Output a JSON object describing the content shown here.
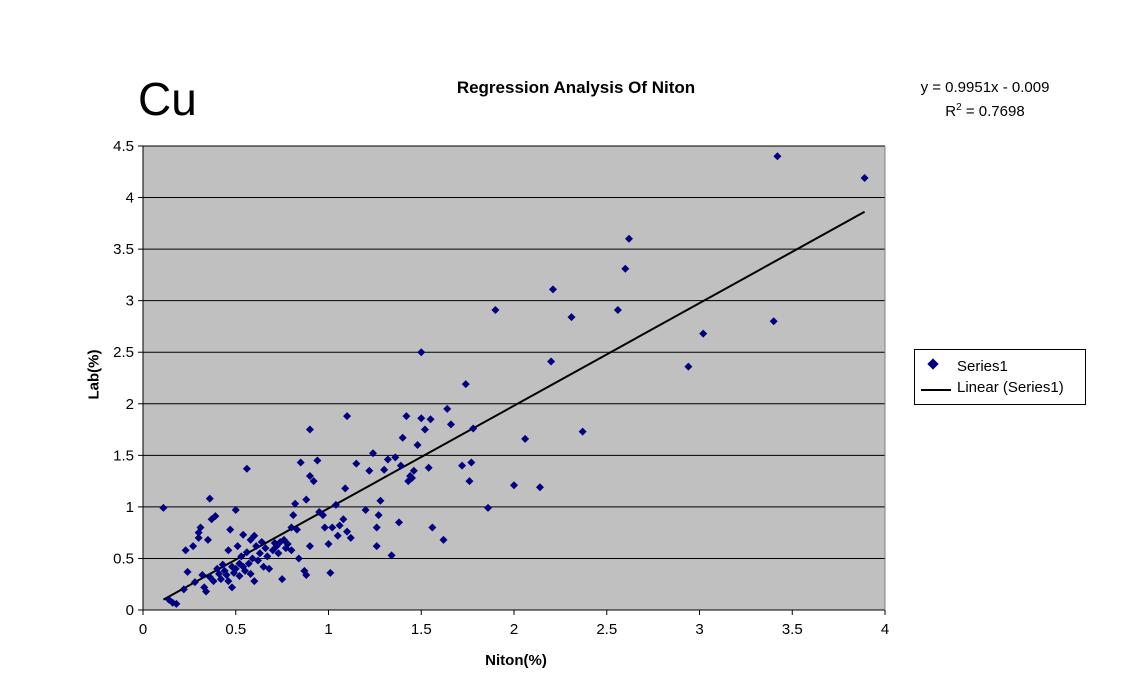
{
  "page": {
    "big_label": "Cu",
    "equation": "y = 0.9951x - 0.009",
    "r2_prefix": "R",
    "r2_sup": "2",
    "r2_value": " = 0.7698"
  },
  "colors": {
    "plot_bg": "#c0c0c0",
    "marker": "#000080",
    "trendline": "#000000",
    "grid": "#000000"
  },
  "chart_data": {
    "type": "scatter",
    "title": "Regression Analysis Of Niton",
    "xlabel": "Niton(%)",
    "ylabel": "Lab(%)",
    "xlim": [
      0,
      4
    ],
    "ylim": [
      0,
      4.5
    ],
    "x_ticks": [
      "0",
      "0.5",
      "1",
      "1.5",
      "2",
      "2.5",
      "3",
      "3.5",
      "4"
    ],
    "y_ticks": [
      "0",
      "0.5",
      "1",
      "1.5",
      "2",
      "2.5",
      "3",
      "3.5",
      "4",
      "4.5"
    ],
    "grid": "horizontal",
    "legend_position": "right",
    "series": [
      {
        "name": "Series1",
        "marker": "diamond",
        "points": [
          [
            0.11,
            0.99
          ],
          [
            0.14,
            0.1
          ],
          [
            0.16,
            0.07
          ],
          [
            0.18,
            0.06
          ],
          [
            0.22,
            0.2
          ],
          [
            0.23,
            0.58
          ],
          [
            0.24,
            0.37
          ],
          [
            0.27,
            0.62
          ],
          [
            0.28,
            0.27
          ],
          [
            0.3,
            0.7
          ],
          [
            0.3,
            0.75
          ],
          [
            0.31,
            0.8
          ],
          [
            0.32,
            0.34
          ],
          [
            0.33,
            0.22
          ],
          [
            0.34,
            0.18
          ],
          [
            0.35,
            0.68
          ],
          [
            0.36,
            1.08
          ],
          [
            0.36,
            0.32
          ],
          [
            0.37,
            0.88
          ],
          [
            0.38,
            0.28
          ],
          [
            0.39,
            0.91
          ],
          [
            0.4,
            0.4
          ],
          [
            0.41,
            0.35
          ],
          [
            0.42,
            0.3
          ],
          [
            0.43,
            0.44
          ],
          [
            0.44,
            0.38
          ],
          [
            0.45,
            0.34
          ],
          [
            0.46,
            0.28
          ],
          [
            0.46,
            0.58
          ],
          [
            0.47,
            0.78
          ],
          [
            0.48,
            0.42
          ],
          [
            0.48,
            0.22
          ],
          [
            0.49,
            0.36
          ],
          [
            0.5,
            0.4
          ],
          [
            0.5,
            0.97
          ],
          [
            0.51,
            0.62
          ],
          [
            0.52,
            0.45
          ],
          [
            0.52,
            0.33
          ],
          [
            0.53,
            0.52
          ],
          [
            0.54,
            0.73
          ],
          [
            0.54,
            0.42
          ],
          [
            0.55,
            0.38
          ],
          [
            0.56,
            0.56
          ],
          [
            0.56,
            1.37
          ],
          [
            0.57,
            0.45
          ],
          [
            0.58,
            0.68
          ],
          [
            0.58,
            0.35
          ],
          [
            0.59,
            0.5
          ],
          [
            0.6,
            0.72
          ],
          [
            0.6,
            0.28
          ],
          [
            0.61,
            0.62
          ],
          [
            0.62,
            0.48
          ],
          [
            0.63,
            0.55
          ],
          [
            0.64,
            0.66
          ],
          [
            0.65,
            0.42
          ],
          [
            0.66,
            0.6
          ],
          [
            0.67,
            0.52
          ],
          [
            0.68,
            0.4
          ],
          [
            0.7,
            0.58
          ],
          [
            0.71,
            0.65
          ],
          [
            0.72,
            0.62
          ],
          [
            0.73,
            0.55
          ],
          [
            0.74,
            0.66
          ],
          [
            0.75,
            0.3
          ],
          [
            0.76,
            0.68
          ],
          [
            0.77,
            0.6
          ],
          [
            0.78,
            0.64
          ],
          [
            0.8,
            0.58
          ],
          [
            0.8,
            0.8
          ],
          [
            0.81,
            0.92
          ],
          [
            0.82,
            1.03
          ],
          [
            0.83,
            0.78
          ],
          [
            0.84,
            0.5
          ],
          [
            0.85,
            1.43
          ],
          [
            0.87,
            0.38
          ],
          [
            0.88,
            1.07
          ],
          [
            0.88,
            0.34
          ],
          [
            0.9,
            1.75
          ],
          [
            0.9,
            0.62
          ],
          [
            0.9,
            1.3
          ],
          [
            0.92,
            1.25
          ],
          [
            0.94,
            1.45
          ],
          [
            0.95,
            0.95
          ],
          [
            0.97,
            0.92
          ],
          [
            0.98,
            0.8
          ],
          [
            1.0,
            0.64
          ],
          [
            1.01,
            0.36
          ],
          [
            1.02,
            0.8
          ],
          [
            1.04,
            1.02
          ],
          [
            1.05,
            0.72
          ],
          [
            1.06,
            0.82
          ],
          [
            1.08,
            0.88
          ],
          [
            1.09,
            1.18
          ],
          [
            1.1,
            1.88
          ],
          [
            1.1,
            0.76
          ],
          [
            1.12,
            0.7
          ],
          [
            1.15,
            1.42
          ],
          [
            1.2,
            0.97
          ],
          [
            1.22,
            1.35
          ],
          [
            1.24,
            1.52
          ],
          [
            1.26,
            0.62
          ],
          [
            1.26,
            0.8
          ],
          [
            1.27,
            0.92
          ],
          [
            1.28,
            1.06
          ],
          [
            1.3,
            1.36
          ],
          [
            1.32,
            1.46
          ],
          [
            1.34,
            0.53
          ],
          [
            1.36,
            1.48
          ],
          [
            1.38,
            0.85
          ],
          [
            1.39,
            1.4
          ],
          [
            1.4,
            1.67
          ],
          [
            1.42,
            1.88
          ],
          [
            1.43,
            1.25
          ],
          [
            1.44,
            1.3
          ],
          [
            1.45,
            1.28
          ],
          [
            1.46,
            1.35
          ],
          [
            1.48,
            1.6
          ],
          [
            1.5,
            1.86
          ],
          [
            1.5,
            2.5
          ],
          [
            1.52,
            1.75
          ],
          [
            1.54,
            1.38
          ],
          [
            1.55,
            1.85
          ],
          [
            1.56,
            0.8
          ],
          [
            1.62,
            0.68
          ],
          [
            1.64,
            1.95
          ],
          [
            1.66,
            1.8
          ],
          [
            1.72,
            1.4
          ],
          [
            1.74,
            2.19
          ],
          [
            1.76,
            1.25
          ],
          [
            1.77,
            1.43
          ],
          [
            1.78,
            1.76
          ],
          [
            1.86,
            0.99
          ],
          [
            1.9,
            2.91
          ],
          [
            2.0,
            1.21
          ],
          [
            2.06,
            1.66
          ],
          [
            2.14,
            1.19
          ],
          [
            2.2,
            2.41
          ],
          [
            2.21,
            3.11
          ],
          [
            2.31,
            2.84
          ],
          [
            2.37,
            1.73
          ],
          [
            2.56,
            2.91
          ],
          [
            2.6,
            3.31
          ],
          [
            2.62,
            3.6
          ],
          [
            2.94,
            2.36
          ],
          [
            3.02,
            2.68
          ],
          [
            3.4,
            2.8
          ],
          [
            3.42,
            4.4
          ],
          [
            3.89,
            4.19
          ]
        ]
      },
      {
        "name": "Linear (Series1)",
        "type": "line",
        "slope": 0.9951,
        "intercept": -0.009,
        "x_range": [
          0.11,
          3.89
        ]
      }
    ]
  }
}
